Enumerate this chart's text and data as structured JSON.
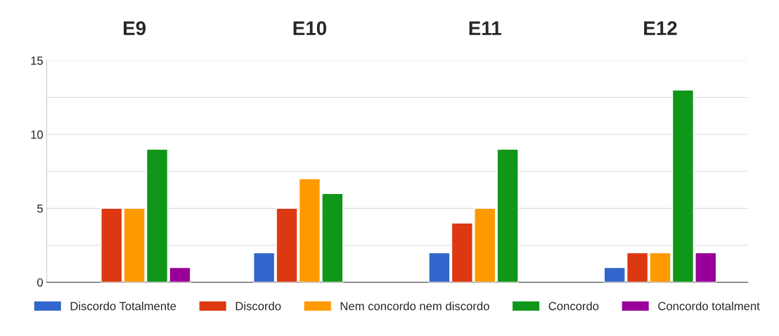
{
  "chart_data": {
    "type": "bar",
    "categories": [
      "E9",
      "E10",
      "E11",
      "E12"
    ],
    "series": [
      {
        "name": "Discordo Totalmente",
        "color": "#3366cc",
        "values": [
          null,
          2,
          2,
          1
        ]
      },
      {
        "name": "Discordo",
        "color": "#dc3912",
        "values": [
          5,
          5,
          4,
          2
        ]
      },
      {
        "name": "Nem concordo nem discordo",
        "color": "#ff9900",
        "values": [
          5,
          7,
          5,
          2
        ]
      },
      {
        "name": "Concordo",
        "color": "#109618",
        "values": [
          9,
          6,
          9,
          13
        ]
      },
      {
        "name": "Concordo totalment",
        "color": "#990099",
        "values": [
          1,
          null,
          null,
          2
        ]
      }
    ],
    "ylim": [
      0,
      15
    ],
    "yticks": [
      0,
      {
        "value": 2.5,
        "label": null
      },
      5,
      {
        "value": 7.5,
        "label": null
      },
      10,
      {
        "value": 12.5,
        "label": null
      },
      15
    ],
    "grid": "y",
    "legend": "bottom"
  }
}
